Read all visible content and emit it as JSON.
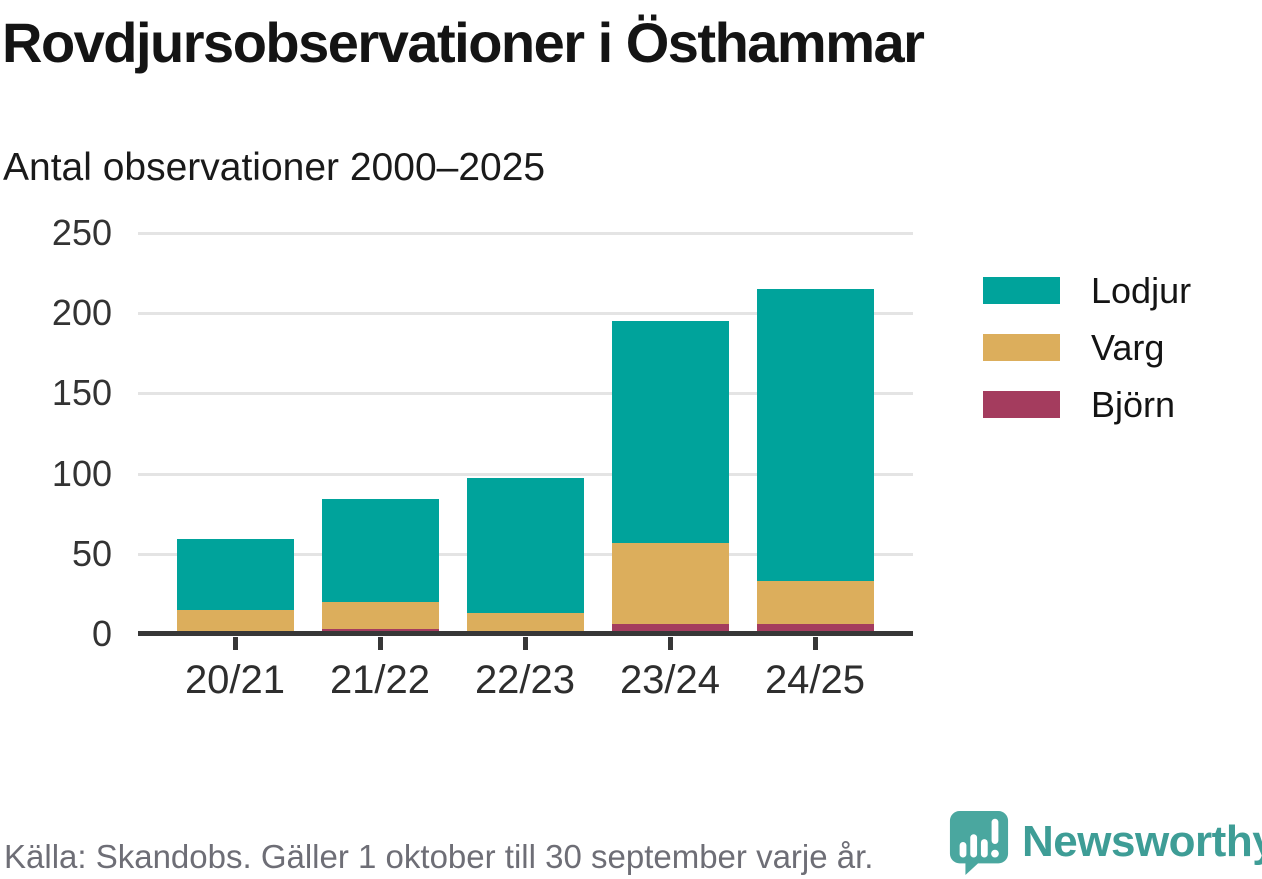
{
  "header": {
    "title": "Rovdjursobservationer i Östhammar",
    "subtitle": "Antal observationer 2000–2025"
  },
  "chart_data": {
    "type": "bar",
    "stacked": true,
    "title": "Rovdjursobservationer i Östhammar",
    "subtitle": "Antal observationer 2000–2025",
    "categories": [
      "20/21",
      "21/22",
      "22/23",
      "23/24",
      "24/25"
    ],
    "series": [
      {
        "name": "Lodjur",
        "color": "#00a39b",
        "values": [
          44,
          64,
          84,
          138,
          182
        ]
      },
      {
        "name": "Varg",
        "color": "#dcae5c",
        "values": [
          14,
          17,
          11,
          51,
          27
        ]
      },
      {
        "name": "Björn",
        "color": "#a43c5e",
        "values": [
          1,
          3,
          2,
          6,
          6
        ]
      }
    ],
    "stack_order_bottom_to_top": [
      "Björn",
      "Varg",
      "Lodjur"
    ],
    "totals": [
      59,
      84,
      97,
      195,
      215
    ],
    "xlabel": "",
    "ylabel": "Antal observationer",
    "ylim": [
      0,
      250
    ],
    "yticks": [
      0,
      50,
      100,
      150,
      200,
      250
    ],
    "grid": true,
    "legend_position": "right"
  },
  "legend": {
    "items": [
      {
        "label": "Lodjur",
        "color": "#00a39b"
      },
      {
        "label": "Varg",
        "color": "#dcae5c"
      },
      {
        "label": "Björn",
        "color": "#a43c5e"
      }
    ]
  },
  "footer": {
    "source": "Källa: Skandobs. Gäller 1 oktober till 30 september varje år.",
    "brand": "Newsworthy"
  },
  "colors": {
    "lodjur": "#00a39b",
    "varg": "#dcae5c",
    "bjorn": "#a43c5e",
    "axis": "#373737",
    "gridline": "#e4e4e4",
    "text": "#141414",
    "muted_text": "#6e6e76",
    "brand_teal": "#3e9d96",
    "logo_bubble": "#4aa79f"
  }
}
